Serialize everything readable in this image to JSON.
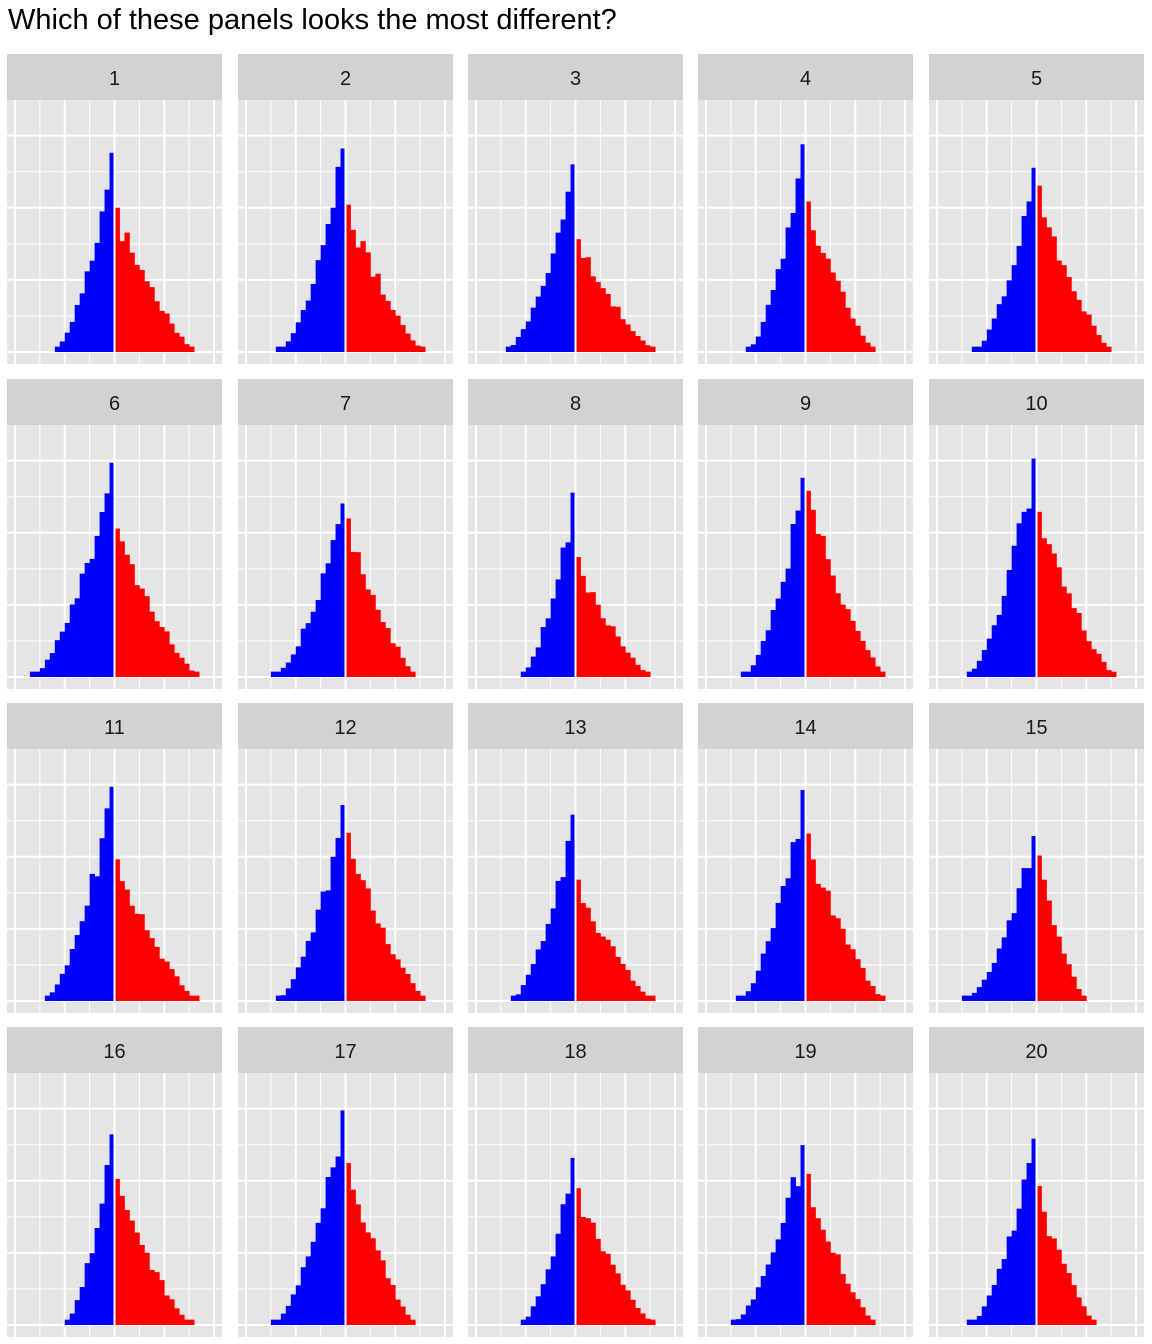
{
  "title": "Which of these panels looks the most different?",
  "colors": {
    "panel_bg": "#E5E5E5",
    "strip_bg": "#D2D2D2",
    "grid_major": "#FFFFFF",
    "negative_fill": "#0000FF",
    "positive_fill": "#FF0000",
    "center_line": "#FFFFFF"
  },
  "chart_data": {
    "type": "bar",
    "description_kind": "lineup of 20 histogram panels, bars left of zero are blue, bars right of zero are red",
    "x_range": [
      -5,
      5
    ],
    "y_range": [
      0,
      1
    ],
    "bins": 40,
    "panels": [
      {
        "label": "1",
        "left_tail": 3.1,
        "right_tail": 4.1,
        "peak": 0.93,
        "shoulder": 0.69
      },
      {
        "label": "2",
        "left_tail": 3.4,
        "right_tail": 4.0,
        "peak": 0.95,
        "shoulder": 0.69
      },
      {
        "label": "3",
        "left_tail": 3.6,
        "right_tail": 4.1,
        "peak": 0.85,
        "shoulder": 0.59
      },
      {
        "label": "4",
        "left_tail": 3.0,
        "right_tail": 3.6,
        "peak": 0.97,
        "shoulder": 0.69
      },
      {
        "label": "5",
        "left_tail": 3.2,
        "right_tail": 3.8,
        "peak": 0.86,
        "shoulder": 0.86
      },
      {
        "label": "6",
        "left_tail": 4.2,
        "right_tail": 4.3,
        "peak": 1.0,
        "shoulder": 0.66
      },
      {
        "label": "7",
        "left_tail": 3.7,
        "right_tail": 3.6,
        "peak": 0.81,
        "shoulder": 0.87
      },
      {
        "label": "8",
        "left_tail": 2.8,
        "right_tail": 3.8,
        "peak": 0.86,
        "shoulder": 0.62
      },
      {
        "label": "9",
        "left_tail": 3.2,
        "right_tail": 4.1,
        "peak": 0.93,
        "shoulder": 0.89
      },
      {
        "label": "10",
        "left_tail": 3.6,
        "right_tail": 4.0,
        "peak": 1.02,
        "shoulder": 0.72
      },
      {
        "label": "11",
        "left_tail": 3.6,
        "right_tail": 4.2,
        "peak": 1.0,
        "shoulder": 0.63
      },
      {
        "label": "12",
        "left_tail": 3.5,
        "right_tail": 4.1,
        "peak": 0.89,
        "shoulder": 0.84
      },
      {
        "label": "13",
        "left_tail": 3.3,
        "right_tail": 4.0,
        "peak": 0.87,
        "shoulder": 0.62
      },
      {
        "label": "14",
        "left_tail": 3.4,
        "right_tail": 4.0,
        "peak": 0.98,
        "shoulder": 0.76
      },
      {
        "label": "15",
        "left_tail": 3.7,
        "right_tail": 2.5,
        "peak": 0.77,
        "shoulder": 0.84
      },
      {
        "label": "16",
        "left_tail": 2.6,
        "right_tail": 3.9,
        "peak": 0.89,
        "shoulder": 0.73
      },
      {
        "label": "17",
        "left_tail": 3.7,
        "right_tail": 3.6,
        "peak": 1.0,
        "shoulder": 0.72
      },
      {
        "label": "18",
        "left_tail": 2.8,
        "right_tail": 4.0,
        "peak": 0.78,
        "shoulder": 0.78
      },
      {
        "label": "19",
        "left_tail": 3.8,
        "right_tail": 3.6,
        "peak": 0.84,
        "shoulder": 0.8
      },
      {
        "label": "20",
        "left_tail": 3.4,
        "right_tail": 3.0,
        "peak": 0.87,
        "shoulder": 0.71
      }
    ]
  }
}
